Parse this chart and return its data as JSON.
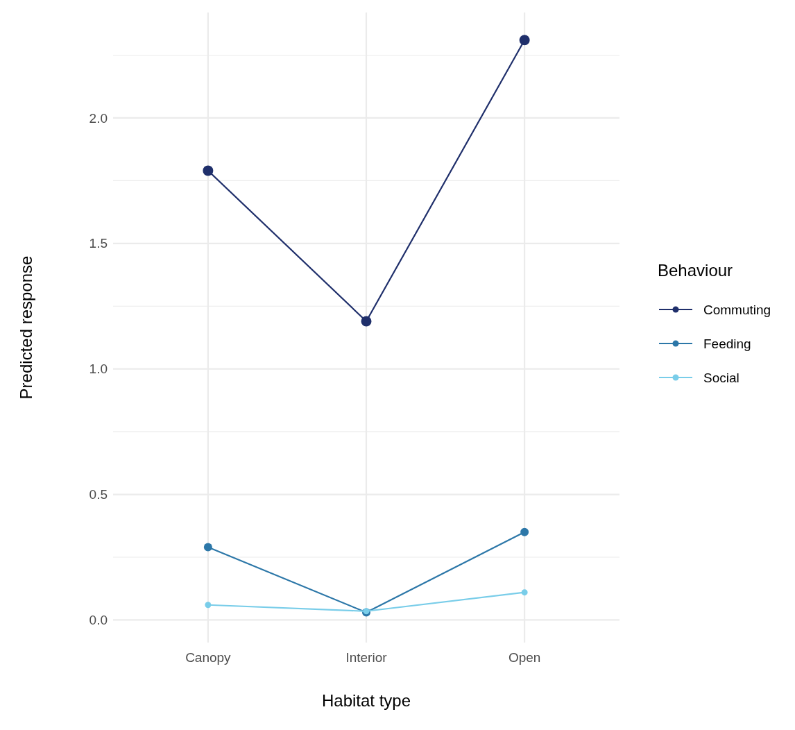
{
  "chart_data": {
    "type": "line",
    "xlabel": "Habitat type",
    "ylabel": "Predicted response",
    "legend_title": "Behaviour",
    "categories": [
      "Canopy",
      "Interior",
      "Open"
    ],
    "series": [
      {
        "name": "Commuting",
        "color": "#1f2f6b",
        "values": [
          1.79,
          1.19,
          2.31
        ]
      },
      {
        "name": "Feeding",
        "color": "#2c77a8",
        "values": [
          0.29,
          0.03,
          0.35
        ]
      },
      {
        "name": "Social",
        "color": "#79cde9",
        "values": [
          0.06,
          0.035,
          0.11
        ]
      }
    ],
    "ylim": [
      -0.09,
      2.42
    ],
    "yticks": [
      {
        "value": 0,
        "label": "0.0"
      },
      {
        "value": 0.25,
        "label": null
      },
      0.5,
      {
        "value": 0.75,
        "label": null
      },
      {
        "value": 1,
        "label": "1.0"
      },
      {
        "value": 1.25,
        "label": null
      },
      1.5,
      {
        "value": 1.75,
        "label": null
      },
      {
        "value": 2,
        "label": "2.0"
      },
      {
        "value": 2.25,
        "label": null
      }
    ],
    "grid": true,
    "legend": "right",
    "marker": "circle",
    "line_style": "solid"
  }
}
